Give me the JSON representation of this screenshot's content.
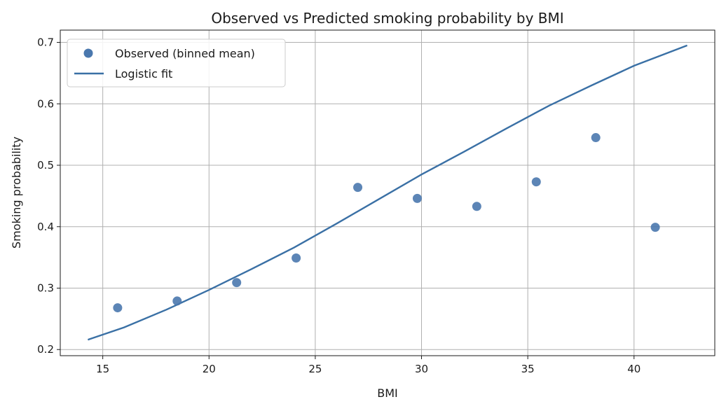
{
  "chart_data": {
    "type": "scatter",
    "title": "Observed vs Predicted smoking probability by BMI",
    "xlabel": "BMI",
    "ylabel": "Smoking probability",
    "xlim": [
      13.0,
      43.8
    ],
    "ylim": [
      0.19,
      0.72
    ],
    "xticks": [
      15,
      20,
      25,
      30,
      35,
      40
    ],
    "yticks": [
      0.2,
      0.3,
      0.4,
      0.5,
      0.6,
      0.7
    ],
    "grid": true,
    "legend_position": "upper-left",
    "series": [
      {
        "name": "Observed (binned mean)",
        "kind": "scatter",
        "color": "#4a78ae",
        "x": [
          15.7,
          18.5,
          21.3,
          24.1,
          27.0,
          29.8,
          32.6,
          35.4,
          38.2,
          41.0
        ],
        "y": [
          0.268,
          0.279,
          0.309,
          0.349,
          0.464,
          0.446,
          0.433,
          0.473,
          0.545,
          0.399
        ]
      },
      {
        "name": "Logistic fit",
        "kind": "line",
        "color": "#3a70a5",
        "x": [
          14.3,
          16,
          18,
          20,
          22,
          24,
          26,
          28,
          30,
          32,
          34,
          36,
          38,
          40,
          42.5
        ],
        "y": [
          0.216,
          0.236,
          0.265,
          0.297,
          0.331,
          0.366,
          0.405,
          0.445,
          0.485,
          0.522,
          0.56,
          0.597,
          0.63,
          0.662,
          0.695
        ]
      }
    ]
  }
}
